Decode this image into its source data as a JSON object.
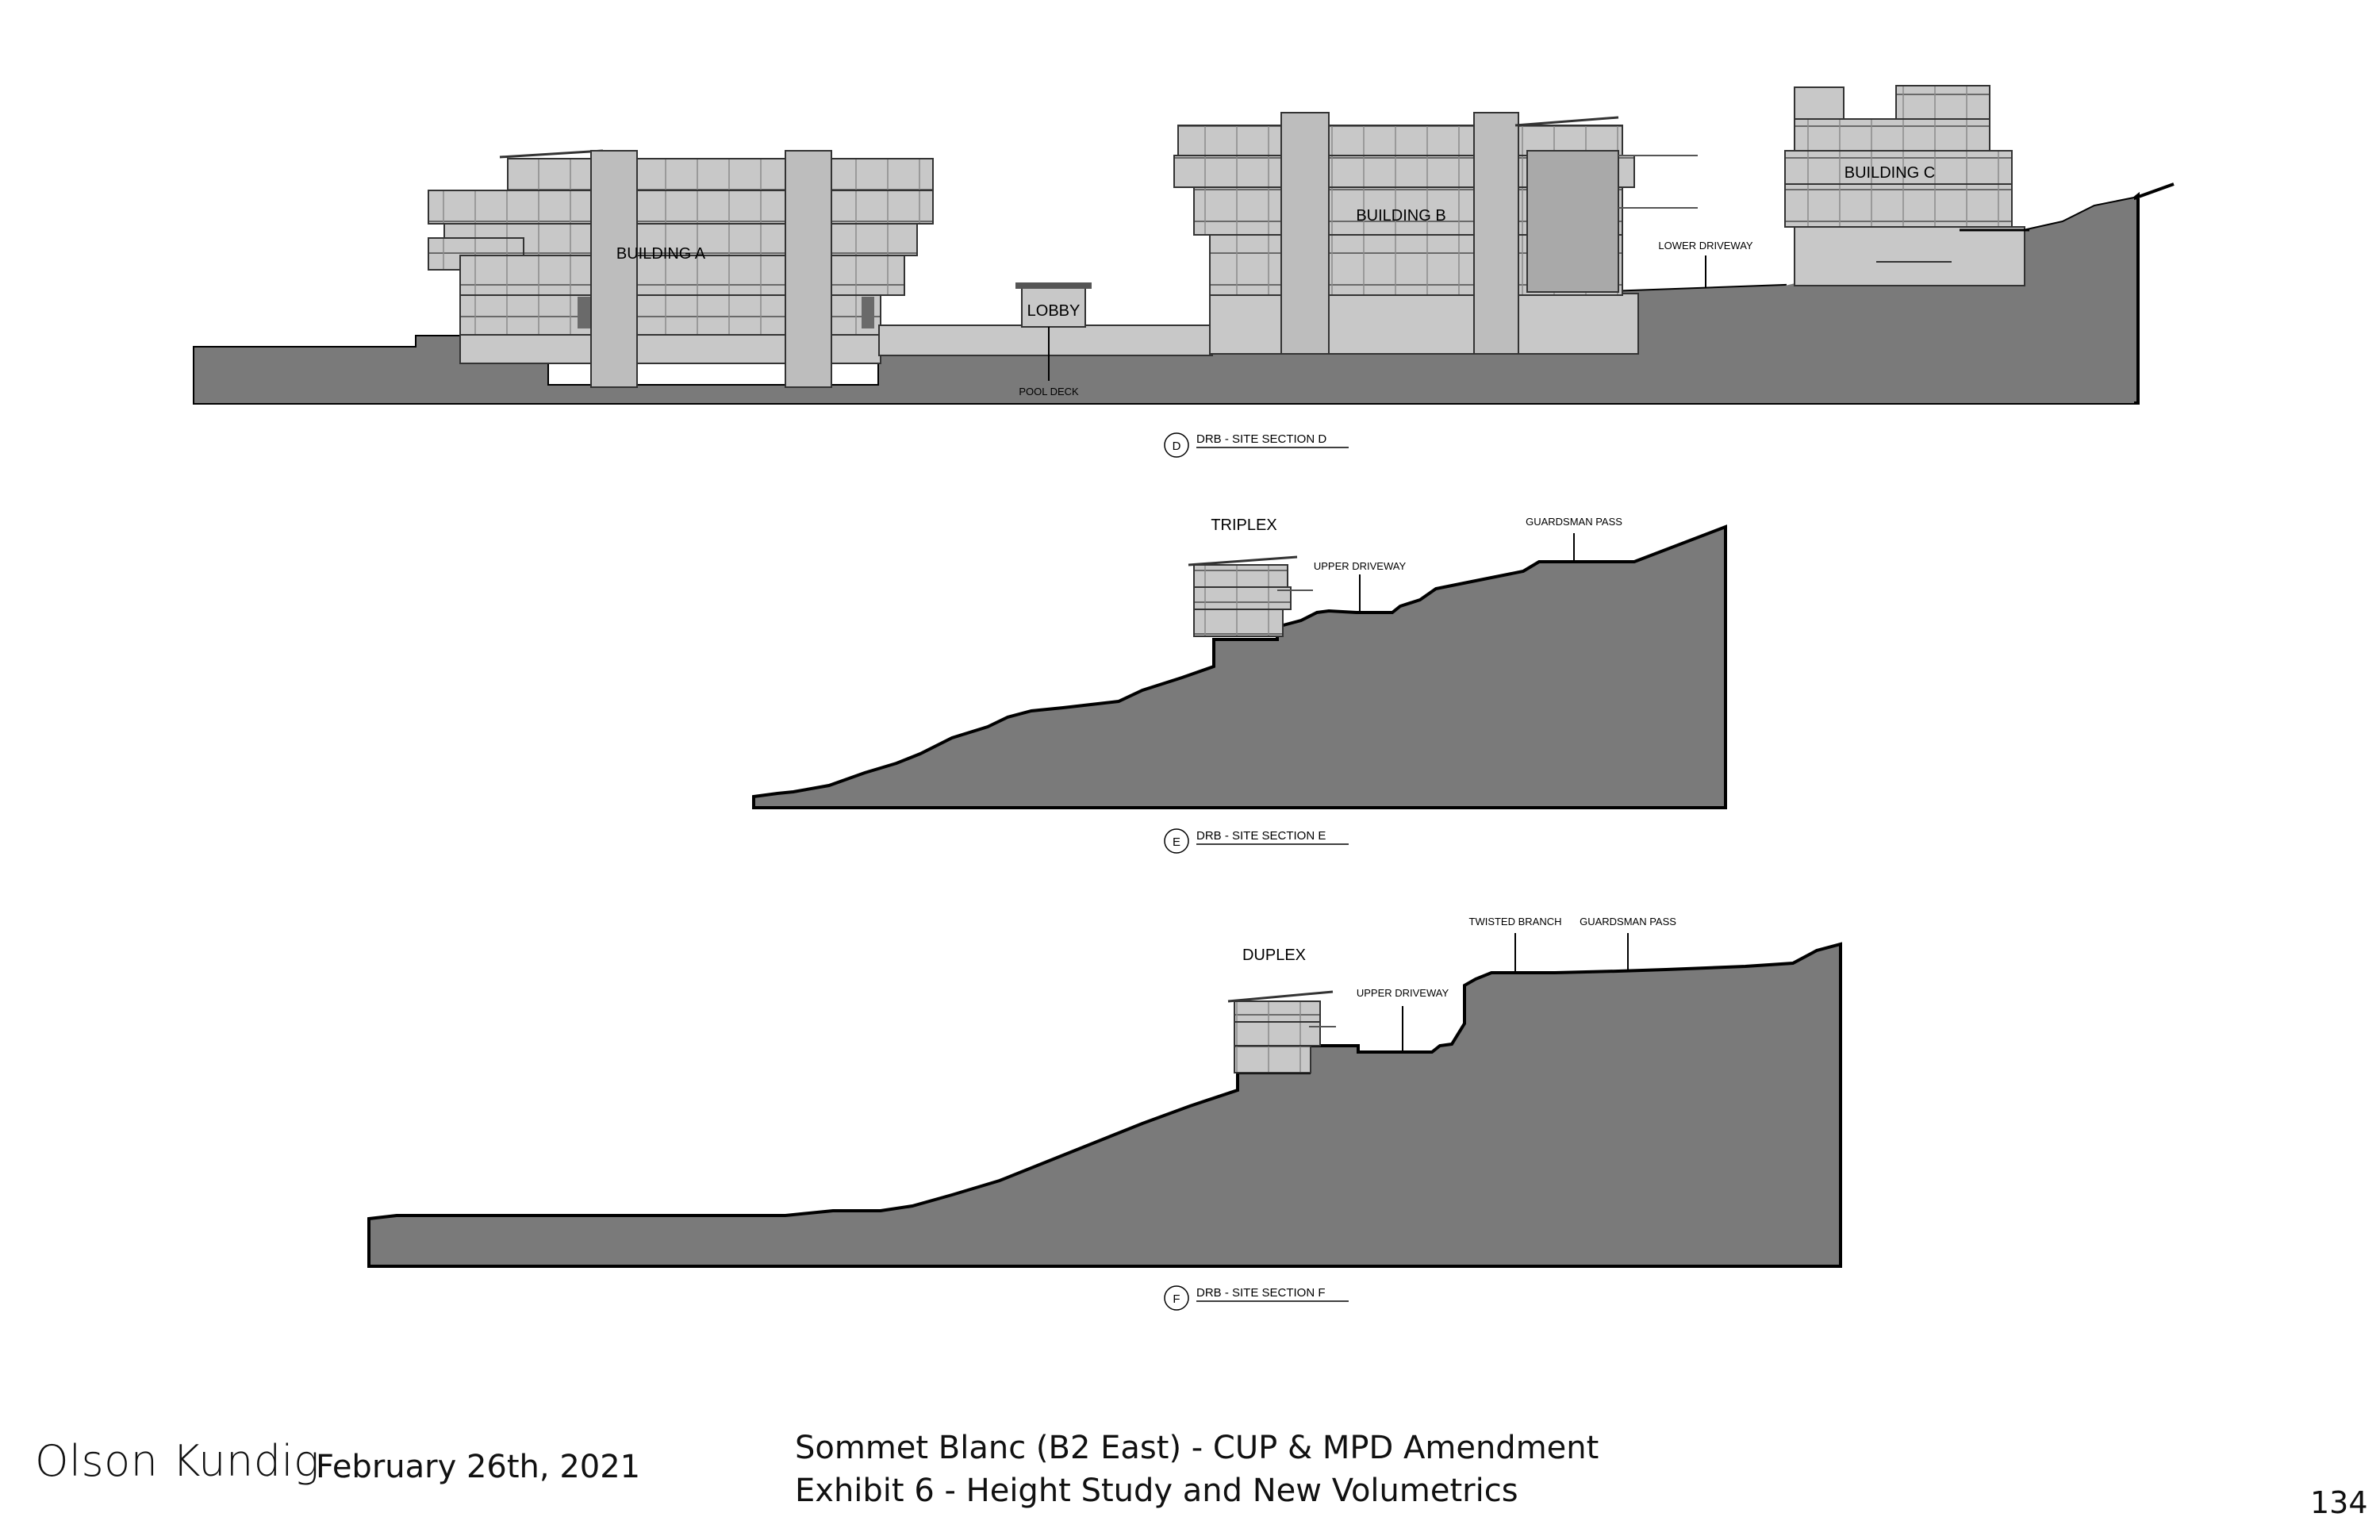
{
  "sections": {
    "d": {
      "marker": "D",
      "caption": "DRB - SITE SECTION D",
      "labels": {
        "building_a": "BUILDING A",
        "building_b": "BUILDING B",
        "building_c": "BUILDING C",
        "lobby": "LOBBY",
        "pool_deck": "POOL DECK",
        "lower_driveway": "LOWER DRIVEWAY"
      }
    },
    "e": {
      "marker": "E",
      "caption": "DRB - SITE SECTION E",
      "labels": {
        "building": "TRIPLEX",
        "upper_driveway": "UPPER DRIVEWAY",
        "guardsman_pass": "GUARDSMAN PASS"
      }
    },
    "f": {
      "marker": "F",
      "caption": "DRB - SITE SECTION F",
      "labels": {
        "building": "DUPLEX",
        "upper_driveway": "UPPER DRIVEWAY",
        "twisted_branch": "TWISTED BRANCH",
        "guardsman_pass": "GUARDSMAN PASS"
      }
    }
  },
  "footer": {
    "firm": "Olson Kundig",
    "date": "February 26th, 2021",
    "title_line1": "Sommet Blanc (B2 East) - CUP & MPD Amendment",
    "title_line2": "Exhibit 6 - Height Study and New Volumetrics",
    "page_number": "134"
  },
  "colors": {
    "ground": "#7a7a7a",
    "building_fill": "#c8c8c8",
    "building_dark": "#a9a9a9",
    "outline": "#000000"
  }
}
